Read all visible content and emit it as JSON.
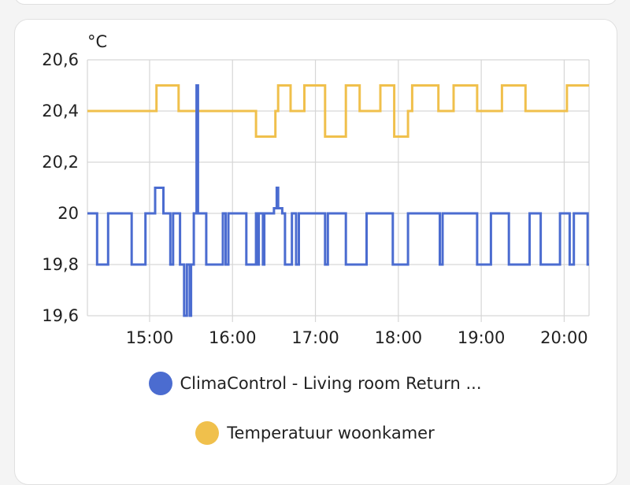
{
  "chart_data": {
    "type": "line",
    "unit": "°C",
    "ylim": [
      19.6,
      20.6
    ],
    "xlim": [
      "14:15",
      "20:18"
    ],
    "y_ticks": [
      "19,6",
      "19,8",
      "20",
      "20,2",
      "20,4",
      "20,6"
    ],
    "y_tick_values": [
      19.6,
      19.8,
      20.0,
      20.2,
      20.4,
      20.6
    ],
    "x_ticks": [
      "15:00",
      "16:00",
      "17:00",
      "18:00",
      "19:00",
      "20:00"
    ],
    "grid": true,
    "legend_position": "bottom",
    "series": [
      {
        "name": "ClimaControl - Living room Return ...",
        "color": "#4b6cd0",
        "step": true,
        "points": [
          [
            "14:15",
            20.0
          ],
          [
            "14:22",
            19.8
          ],
          [
            "14:30",
            20.0
          ],
          [
            "14:47",
            19.8
          ],
          [
            "14:57",
            20.0
          ],
          [
            "15:04",
            20.1
          ],
          [
            "15:10",
            20.0
          ],
          [
            "15:15",
            19.8
          ],
          [
            "15:17",
            20.0
          ],
          [
            "15:22",
            19.8
          ],
          [
            "15:25",
            19.6
          ],
          [
            "15:27",
            19.8
          ],
          [
            "15:29",
            19.6
          ],
          [
            "15:30",
            19.8
          ],
          [
            "15:32",
            20.0
          ],
          [
            "15:34",
            20.5
          ],
          [
            "15:35",
            20.0
          ],
          [
            "15:41",
            19.8
          ],
          [
            "15:53",
            20.0
          ],
          [
            "15:55",
            19.8
          ],
          [
            "15:57",
            20.0
          ],
          [
            "16:10",
            19.8
          ],
          [
            "16:17",
            20.0
          ],
          [
            "16:18",
            19.8
          ],
          [
            "16:19",
            20.0
          ],
          [
            "16:22",
            19.8
          ],
          [
            "16:23",
            20.0
          ],
          [
            "16:30",
            20.02
          ],
          [
            "16:32",
            20.1
          ],
          [
            "16:33",
            20.02
          ],
          [
            "16:36",
            20.0
          ],
          [
            "16:38",
            19.8
          ],
          [
            "16:43",
            20.0
          ],
          [
            "16:46",
            19.8
          ],
          [
            "16:48",
            20.0
          ],
          [
            "17:07",
            19.8
          ],
          [
            "17:09",
            20.0
          ],
          [
            "17:22",
            19.8
          ],
          [
            "17:37",
            20.0
          ],
          [
            "17:56",
            19.8
          ],
          [
            "18:07",
            20.0
          ],
          [
            "18:30",
            19.8
          ],
          [
            "18:32",
            20.0
          ],
          [
            "18:57",
            19.8
          ],
          [
            "19:07",
            20.0
          ],
          [
            "19:20",
            19.8
          ],
          [
            "19:35",
            20.0
          ],
          [
            "19:43",
            19.8
          ],
          [
            "19:57",
            20.0
          ],
          [
            "20:04",
            19.8
          ],
          [
            "20:07",
            20.0
          ],
          [
            "20:17",
            19.8
          ],
          [
            "20:18",
            19.8
          ]
        ]
      },
      {
        "name": "Temperatuur woonkamer",
        "color": "#f0c04c",
        "step": true,
        "points": [
          [
            "14:15",
            20.4
          ],
          [
            "15:05",
            20.5
          ],
          [
            "15:21",
            20.4
          ],
          [
            "16:17",
            20.3
          ],
          [
            "16:31",
            20.4
          ],
          [
            "16:33",
            20.5
          ],
          [
            "16:42",
            20.4
          ],
          [
            "16:52",
            20.5
          ],
          [
            "17:07",
            20.3
          ],
          [
            "17:22",
            20.5
          ],
          [
            "17:32",
            20.4
          ],
          [
            "17:47",
            20.5
          ],
          [
            "17:57",
            20.3
          ],
          [
            "18:07",
            20.4
          ],
          [
            "18:10",
            20.5
          ],
          [
            "18:29",
            20.4
          ],
          [
            "18:40",
            20.5
          ],
          [
            "18:57",
            20.4
          ],
          [
            "19:15",
            20.5
          ],
          [
            "19:32",
            20.4
          ],
          [
            "20:02",
            20.5
          ],
          [
            "20:18",
            20.5
          ]
        ]
      }
    ]
  }
}
